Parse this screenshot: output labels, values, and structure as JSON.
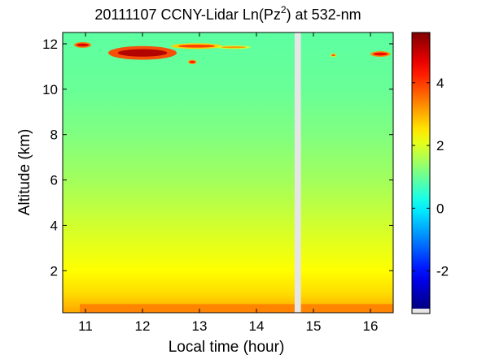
{
  "chart_data": {
    "type": "heatmap",
    "title": "20111107 CCNY-Lidar Ln(Pz",
    "title_superscript": "2",
    "title_suffix": ") at 532-nm",
    "xlabel": "Local time (hour)",
    "ylabel": "Altitude (km)",
    "xlim": [
      10.6,
      16.4
    ],
    "ylim": [
      0.15,
      12.5
    ],
    "x_ticks": [
      11,
      12,
      13,
      14,
      15,
      16
    ],
    "x_tick_labels": [
      "11",
      "12",
      "13",
      "14",
      "15",
      "16"
    ],
    "y_ticks": [
      2,
      4,
      6,
      8,
      10,
      12
    ],
    "y_tick_labels": [
      "2",
      "4",
      "6",
      "8",
      "10",
      "12"
    ],
    "colorbar": {
      "colormap": "jet",
      "range": [
        -3.2,
        5.6
      ],
      "ticks": [
        -2,
        0,
        2,
        4
      ],
      "tick_labels": [
        "-2",
        "0",
        "2",
        "4"
      ],
      "no_data_color": "#e6e6e6"
    },
    "data_gap": {
      "x_start": 14.67,
      "x_end": 14.78,
      "color": "#e6e6e6"
    },
    "background_profile": [
      {
        "altitude_km": 0.3,
        "value": 3.0
      },
      {
        "altitude_km": 1.0,
        "value": 2.6
      },
      {
        "altitude_km": 2.0,
        "value": 2.3
      },
      {
        "altitude_km": 3.0,
        "value": 2.1
      },
      {
        "altitude_km": 4.0,
        "value": 1.9
      },
      {
        "altitude_km": 5.0,
        "value": 1.7
      },
      {
        "altitude_km": 6.0,
        "value": 1.5
      },
      {
        "altitude_km": 8.0,
        "value": 1.2
      },
      {
        "altitude_km": 10.0,
        "value": 1.0
      },
      {
        "altitude_km": 12.5,
        "value": 0.9
      }
    ],
    "features": [
      {
        "name": "surface-layer",
        "x_start": 10.9,
        "x_end": 16.4,
        "altitude_km": 0.35,
        "value": 3.4
      },
      {
        "name": "cirrus-main",
        "x_start": 11.4,
        "x_end": 12.6,
        "altitude_km": 11.6,
        "thickness_km": 0.6,
        "value": 5.2
      },
      {
        "name": "cirrus-left",
        "x_start": 10.8,
        "x_end": 11.1,
        "altitude_km": 11.95,
        "thickness_km": 0.25,
        "value": 4.8
      },
      {
        "name": "cirrus-mid",
        "x_start": 12.5,
        "x_end": 13.4,
        "altitude_km": 11.9,
        "thickness_km": 0.25,
        "value": 4.0
      },
      {
        "name": "cirrus-far",
        "x_start": 13.3,
        "x_end": 13.9,
        "altitude_km": 11.85,
        "thickness_km": 0.15,
        "value": 3.2
      },
      {
        "name": "cirrus-patch-1",
        "x_start": 12.8,
        "x_end": 12.95,
        "altitude_km": 11.2,
        "thickness_km": 0.2,
        "value": 4.4
      },
      {
        "name": "cirrus-patch-2",
        "x_start": 15.3,
        "x_end": 15.4,
        "altitude_km": 11.5,
        "thickness_km": 0.15,
        "value": 3.8
      },
      {
        "name": "cirrus-right",
        "x_start": 16.0,
        "x_end": 16.35,
        "altitude_km": 11.55,
        "thickness_km": 0.25,
        "value": 4.6
      }
    ]
  }
}
